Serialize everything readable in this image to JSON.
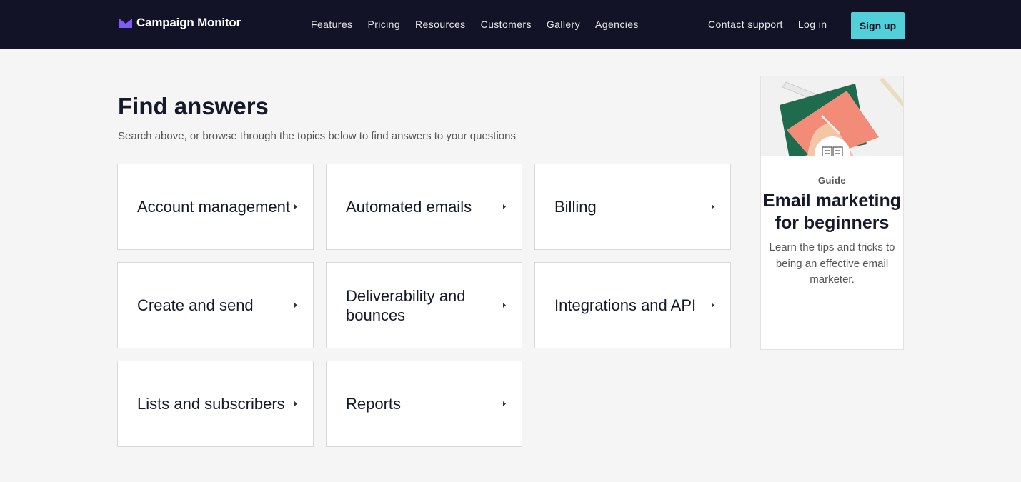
{
  "nav": {
    "brand": "Campaign Monitor",
    "links": [
      "Features",
      "Pricing",
      "Resources",
      "Customers",
      "Gallery",
      "Agencies"
    ],
    "contact": "Contact support",
    "login": "Log in",
    "signup": "Sign up",
    "accent": "#52d0d9"
  },
  "main": {
    "title": "Find answers",
    "subtitle": "Search above, or browse through the topics below to find answers to your questions",
    "topics": [
      "Account management",
      "Automated emails",
      "Billing",
      "Create and send",
      "Deliverability and bounces",
      "Integrations and API",
      "Lists and subscribers",
      "Reports"
    ]
  },
  "guide": {
    "label": "Guide",
    "title": "Email marketing for beginners",
    "description": "Learn the tips and tricks to being an effective email marketer.",
    "icon": "open-book-icon"
  }
}
